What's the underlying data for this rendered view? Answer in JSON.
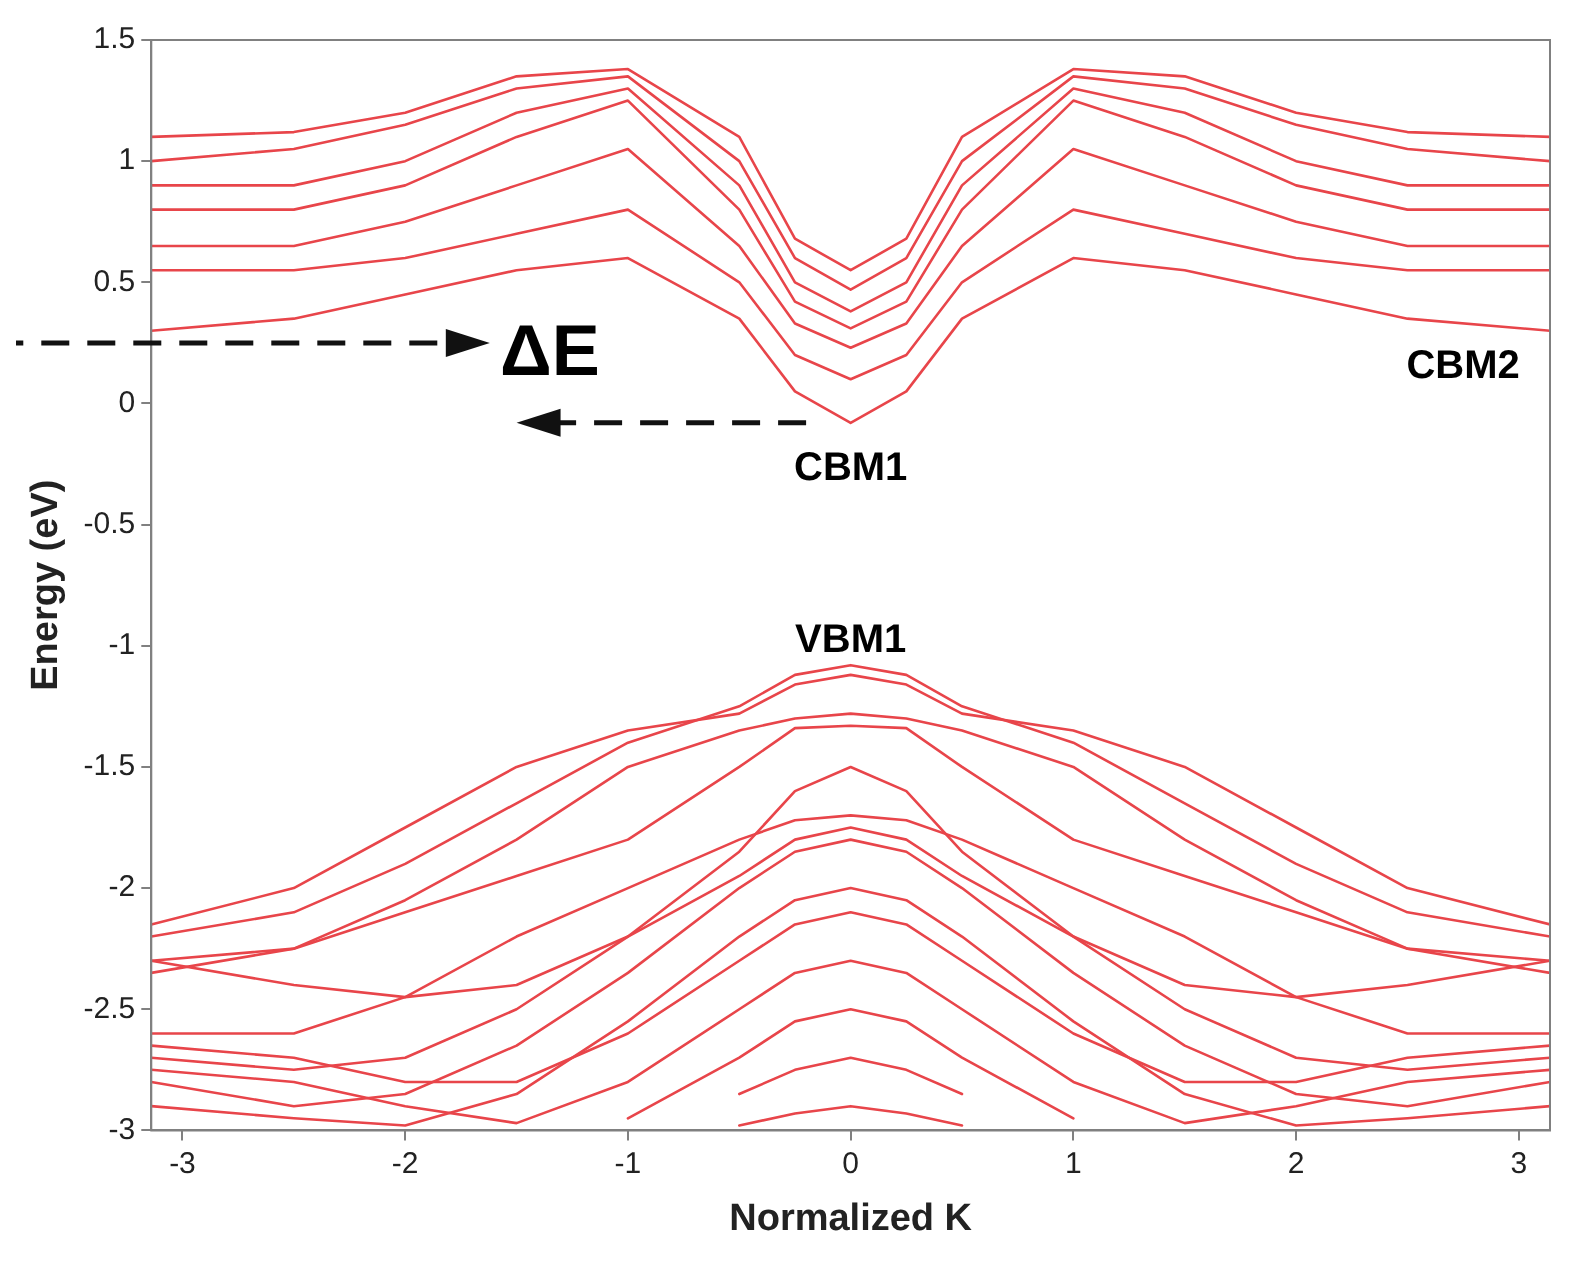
{
  "chart_data": {
    "type": "line",
    "xlabel": "Normalized K",
    "ylabel": "Energy (eV)",
    "x": [
      -3.14,
      -2.5,
      -2,
      -1.5,
      -1,
      -0.5,
      -0.25,
      0,
      0.25,
      0.5,
      1,
      1.5,
      2,
      2.5,
      3.14
    ],
    "xlim": [
      -3.14,
      3.14
    ],
    "xticks": [
      -3,
      -2,
      -1,
      0,
      1,
      2,
      3
    ],
    "ylim": [
      -3,
      1.5
    ],
    "yticks": [
      -3,
      -2.5,
      -2,
      -1.5,
      -1,
      -0.5,
      0,
      0.5,
      1,
      1.5
    ],
    "marker": "none",
    "line_style": "solid",
    "series": [
      {
        "color": "#e8454a",
        "values": [
          0.3,
          0.35,
          0.45,
          0.55,
          0.6,
          0.35,
          0.05,
          -0.08,
          0.05,
          0.35,
          0.6,
          0.55,
          0.45,
          0.35,
          0.3
        ]
      },
      {
        "color": "#e8454a",
        "values": [
          0.55,
          0.55,
          0.6,
          0.7,
          0.8,
          0.5,
          0.2,
          0.1,
          0.2,
          0.5,
          0.8,
          0.7,
          0.6,
          0.55,
          0.55
        ]
      },
      {
        "color": "#e8454a",
        "values": [
          0.65,
          0.65,
          0.75,
          0.9,
          1.05,
          0.65,
          0.33,
          0.23,
          0.33,
          0.65,
          1.05,
          0.9,
          0.75,
          0.65,
          0.65
        ]
      },
      {
        "color": "#e8454a",
        "values": [
          0.8,
          0.8,
          0.9,
          1.1,
          1.25,
          0.8,
          0.42,
          0.31,
          0.42,
          0.8,
          1.25,
          1.1,
          0.9,
          0.8,
          0.8
        ]
      },
      {
        "color": "#e8454a",
        "values": [
          0.9,
          0.9,
          1.0,
          1.2,
          1.3,
          0.9,
          0.5,
          0.38,
          0.5,
          0.9,
          1.3,
          1.2,
          1.0,
          0.9,
          0.9
        ]
      },
      {
        "color": "#e8454a",
        "values": [
          1.0,
          1.05,
          1.15,
          1.3,
          1.35,
          1.0,
          0.6,
          0.47,
          0.6,
          1.0,
          1.35,
          1.3,
          1.15,
          1.05,
          1.0
        ]
      },
      {
        "color": "#e8454a",
        "values": [
          1.1,
          1.12,
          1.2,
          1.35,
          1.38,
          1.1,
          0.68,
          0.55,
          0.68,
          1.1,
          1.38,
          1.35,
          1.2,
          1.12,
          1.1
        ]
      },
      {
        "color": "#e8454a",
        "values": [
          -2.2,
          -2.1,
          -1.9,
          -1.65,
          -1.4,
          -1.25,
          -1.12,
          -1.08,
          -1.12,
          -1.25,
          -1.4,
          -1.65,
          -1.9,
          -2.1,
          -2.2
        ]
      },
      {
        "color": "#e8454a",
        "values": [
          -2.15,
          -2.0,
          -1.75,
          -1.5,
          -1.35,
          -1.28,
          -1.16,
          -1.12,
          -1.16,
          -1.28,
          -1.35,
          -1.5,
          -1.75,
          -2.0,
          -2.15
        ]
      },
      {
        "color": "#e8454a",
        "values": [
          -2.3,
          -2.25,
          -2.05,
          -1.8,
          -1.5,
          -1.35,
          -1.3,
          -1.28,
          -1.3,
          -1.35,
          -1.5,
          -1.8,
          -2.05,
          -2.25,
          -2.3
        ]
      },
      {
        "color": "#e8454a",
        "values": [
          -2.35,
          -2.25,
          -2.1,
          -1.95,
          -1.8,
          -1.5,
          -1.34,
          -1.33,
          -1.34,
          -1.5,
          -1.8,
          -1.95,
          -2.1,
          -2.25,
          -2.35
        ]
      },
      {
        "color": "#e8454a",
        "values": [
          -2.3,
          -2.4,
          -2.45,
          -2.4,
          -2.2,
          -1.85,
          -1.6,
          -1.5,
          -1.6,
          -1.85,
          -2.2,
          -2.4,
          -2.45,
          -2.4,
          -2.3
        ]
      },
      {
        "color": "#e8454a",
        "values": [
          -2.6,
          -2.6,
          -2.45,
          -2.2,
          -2.0,
          -1.8,
          -1.72,
          -1.7,
          -1.72,
          -1.8,
          -2.0,
          -2.2,
          -2.45,
          -2.6,
          -2.6
        ]
      },
      {
        "color": "#e8454a",
        "values": [
          -2.7,
          -2.75,
          -2.7,
          -2.5,
          -2.2,
          -1.95,
          -1.8,
          -1.75,
          -1.8,
          -1.95,
          -2.2,
          -2.5,
          -2.7,
          -2.75,
          -2.7
        ]
      },
      {
        "color": "#e8454a",
        "values": [
          -2.8,
          -2.9,
          -2.85,
          -2.65,
          -2.35,
          -2.0,
          -1.85,
          -1.8,
          -1.85,
          -2.0,
          -2.35,
          -2.65,
          -2.85,
          -2.9,
          -2.8
        ]
      },
      {
        "color": "#e8454a",
        "values": [
          -2.9,
          -2.95,
          -2.98,
          -2.85,
          -2.55,
          -2.2,
          -2.05,
          -2.0,
          -2.05,
          -2.2,
          -2.55,
          -2.85,
          -2.98,
          -2.95,
          -2.9
        ]
      },
      {
        "color": "#e8454a",
        "values": [
          -2.65,
          -2.7,
          -2.8,
          -2.8,
          -2.6,
          -2.3,
          -2.15,
          -2.1,
          -2.15,
          -2.3,
          -2.6,
          -2.8,
          -2.8,
          -2.7,
          -2.65
        ]
      },
      {
        "color": "#e8454a",
        "values": [
          -2.75,
          -2.8,
          -2.9,
          -2.97,
          -2.8,
          -2.5,
          -2.35,
          -2.3,
          -2.35,
          -2.5,
          -2.8,
          -2.97,
          -2.9,
          -2.8,
          -2.75
        ]
      },
      {
        "color": "#e8454a",
        "values": [
          null,
          null,
          null,
          null,
          -2.95,
          -2.7,
          -2.55,
          -2.5,
          -2.55,
          -2.7,
          -2.95,
          null,
          null,
          null,
          null
        ]
      },
      {
        "color": "#e8454a",
        "values": [
          null,
          null,
          null,
          null,
          null,
          -2.85,
          -2.75,
          -2.7,
          -2.75,
          -2.85,
          null,
          null,
          null,
          null,
          null
        ]
      },
      {
        "color": "#e8454a",
        "values": [
          null,
          null,
          null,
          null,
          null,
          -2.98,
          -2.93,
          -2.9,
          -2.93,
          -2.98,
          null,
          null,
          null,
          null,
          null
        ]
      }
    ],
    "annotations": [
      "ΔE",
      "CBM1",
      "CBM2",
      "VBM1"
    ]
  }
}
